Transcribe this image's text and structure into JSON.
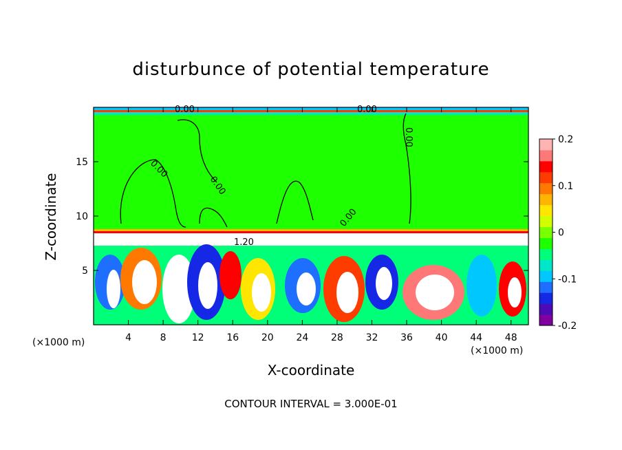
{
  "chart_data": {
    "type": "heatmap",
    "title": "disturbunce of potential temperature",
    "xlabel": "X-coordinate",
    "ylabel": "Z-coordinate",
    "x_unit": "(×1000 m)",
    "x_unit_right": "(×1000 m)",
    "xlim": [
      0,
      50
    ],
    "ylim": [
      0,
      20
    ],
    "x_ticks": [
      4,
      8,
      12,
      16,
      20,
      24,
      28,
      32,
      36,
      40,
      44,
      48
    ],
    "y_ticks": [
      5,
      10,
      15
    ],
    "colorbar": {
      "range": [
        -0.2,
        0.2
      ],
      "ticks": [
        "0.2",
        "0.1",
        "0",
        "-0.1",
        "-0.2"
      ],
      "colors": [
        "#8000a0",
        "#4b0cb8",
        "#1428e6",
        "#1e6eff",
        "#00c8ff",
        "#00e6c8",
        "#00ff78",
        "#1eff00",
        "#78ff00",
        "#d2ff00",
        "#ffe600",
        "#ffb400",
        "#ff7800",
        "#ff3c00",
        "#ff0000",
        "#ff7878",
        "#ffb4b4"
      ]
    },
    "contour_labels": [
      "0.00",
      "0.00",
      "0.00",
      "0.00",
      "0.00",
      "0.00",
      "1.20"
    ],
    "contour_interval_note": "CONTOUR INTERVAL = 3.000E-01"
  }
}
